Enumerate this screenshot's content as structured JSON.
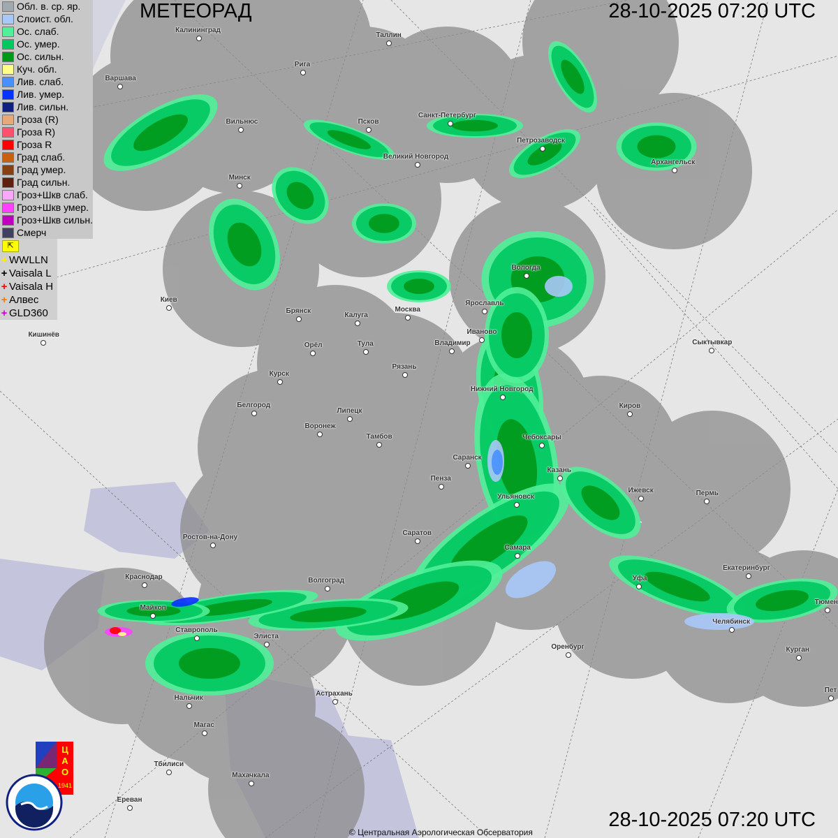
{
  "header": {
    "title": "МЕТЕОРАД",
    "timestamp_top": "28-10-2025  07:20 UTC",
    "timestamp_bottom": "28-10-2025  07:20 UTC"
  },
  "legend": {
    "items": [
      {
        "label": "Обл. в. ср. яр.",
        "color": "#a0a8b0"
      },
      {
        "label": "Слоист. обл.",
        "color": "#a8c8f8"
      },
      {
        "label": "Ос. слаб.",
        "color": "#50f098"
      },
      {
        "label": "Ос. умер.",
        "color": "#00c860"
      },
      {
        "label": "Ос. сильн.",
        "color": "#009818"
      },
      {
        "label": "Куч. обл.",
        "color": "#ffff88"
      },
      {
        "label": "Лив. слаб.",
        "color": "#4890ff"
      },
      {
        "label": "Лив. умер.",
        "color": "#0830ff"
      },
      {
        "label": "Лив. сильн.",
        "color": "#102080"
      },
      {
        "label": "Гроза (R)",
        "color": "#e8a878"
      },
      {
        "label": "Гроза R)",
        "color": "#ff5070"
      },
      {
        "label": "Гроза R",
        "color": "#ff0000"
      },
      {
        "label": "Град слаб.",
        "color": "#c86010"
      },
      {
        "label": "Град умер.",
        "color": "#884010"
      },
      {
        "label": "Град сильн.",
        "color": "#602010"
      },
      {
        "label": "Гроз+Шкв слаб.",
        "color": "#f8a8f8"
      },
      {
        "label": "Гроз+Шкв умер.",
        "color": "#ff40ff"
      },
      {
        "label": "Гроз+Шкв сильн.",
        "color": "#c000c0"
      },
      {
        "label": "Смерч",
        "color": "#404060"
      }
    ]
  },
  "lightning": {
    "flag_icon": "lightning-flag-icon",
    "items": [
      {
        "label": "WWLLN",
        "color": "#ffee00"
      },
      {
        "label": "Vaisala L",
        "color": "#000000"
      },
      {
        "label": "Vaisala H",
        "color": "#ff0000"
      },
      {
        "label": "Алвес",
        "color": "#ff7700"
      },
      {
        "label": "GLD360",
        "color": "#cc00cc"
      }
    ]
  },
  "cities": [
    "Калининград",
    "Таллин",
    "Рига",
    "Варшава",
    "Вильнюс",
    "Псков",
    "Санкт-Петербург",
    "Петрозаводск",
    "Архангельск",
    "Великий Новгород",
    "Минск",
    "Вологда",
    "Киев",
    "Брянск",
    "Калуга",
    "Москва",
    "Ярославль",
    "Иваново",
    "Владимир",
    "Тула",
    "Кишинёв",
    "Сыктывкар",
    "Орёл",
    "Рязань",
    "Курск",
    "Нижний Новгород",
    "Белгород",
    "Липецк",
    "Киров",
    "Воронеж",
    "Тамбов",
    "Саранск",
    "Чебоксары",
    "Казань",
    "Пенза",
    "Ижевск",
    "Пермь",
    "Ульяновск",
    "Ростов-на-Дону",
    "Саратов",
    "Самара",
    "Екатеринбург",
    "Уфа",
    "Краснодар",
    "Волгоград",
    "Майкоп",
    "Челябинск",
    "Ставрополь",
    "Элиста",
    "Оренбург",
    "Курган",
    "Тюмень",
    "Нальчик",
    "Астрахань",
    "Магас",
    "Тбилиси",
    "Махачкала",
    "Ереван",
    "Пет"
  ],
  "logos": {
    "tsao": "ЦАО 1941",
    "roshydromet": "РОСГИДРОМЕТ ROSHYDROMET"
  },
  "footer": {
    "copyright": "© Центральная Аэрологическая Обсерватория"
  },
  "colors": {
    "radar_coverage": "#8c8c8c",
    "background": "#e6e6e6",
    "water": "#c4c4dc"
  }
}
